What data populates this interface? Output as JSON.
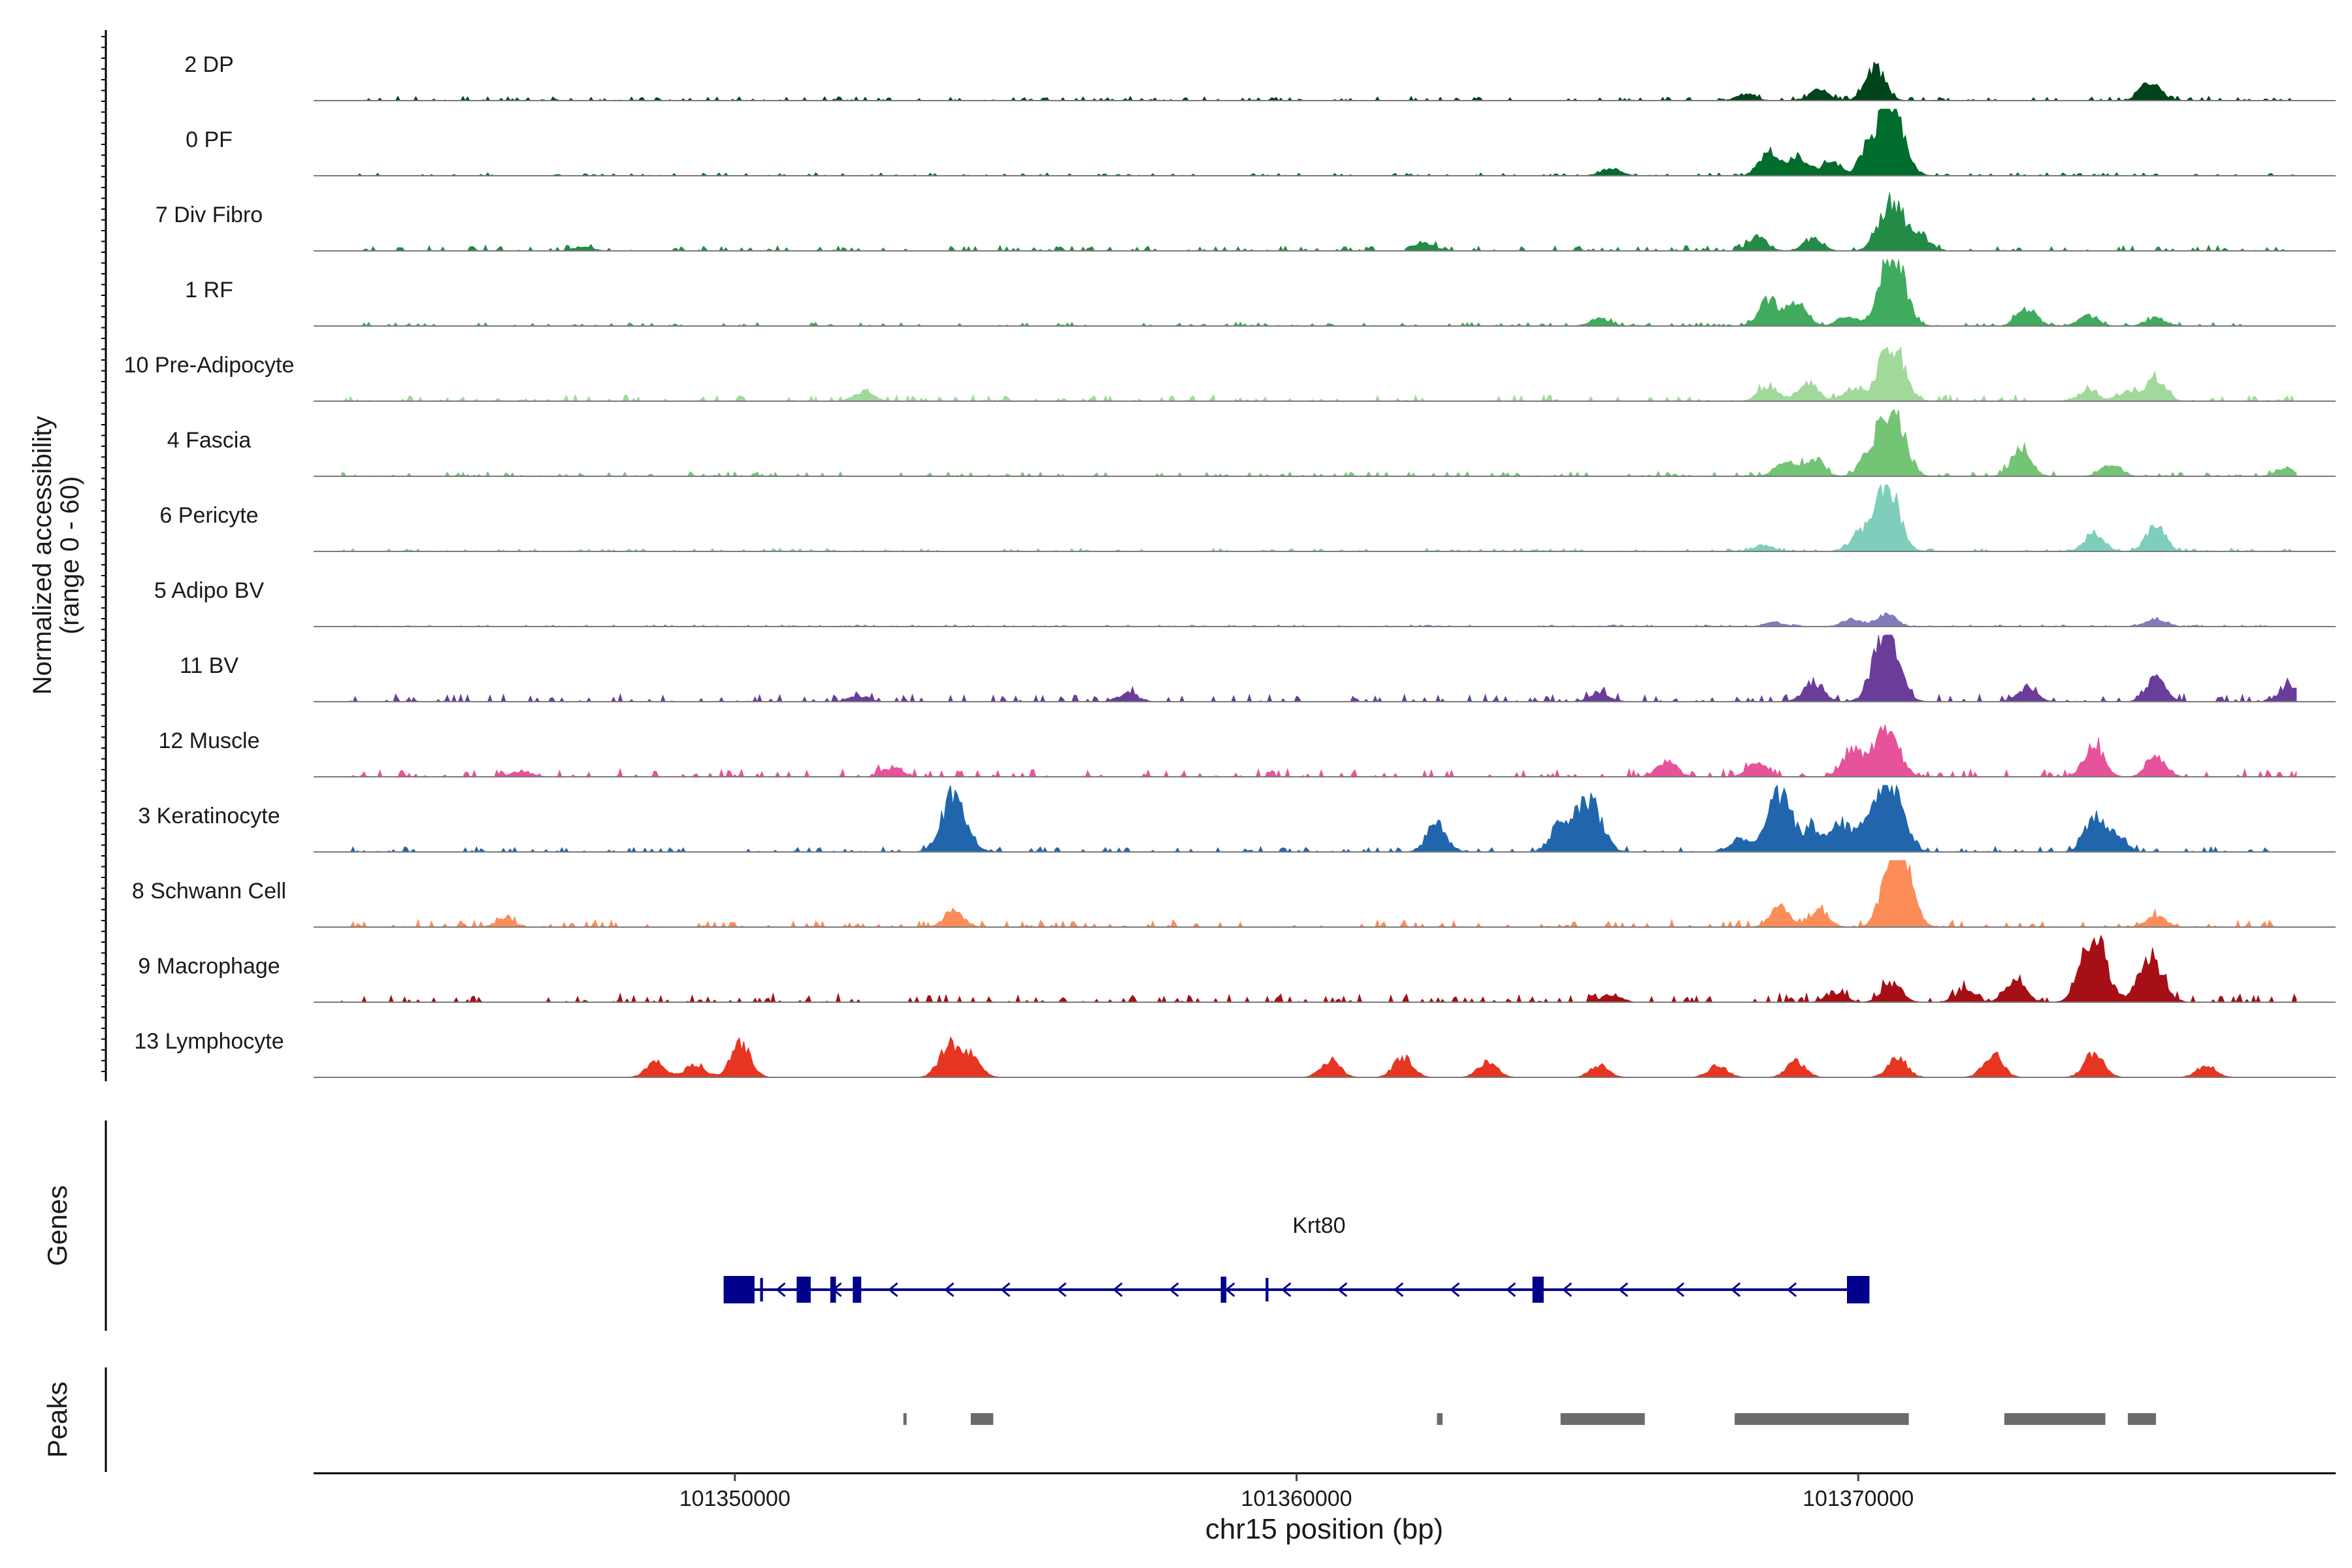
{
  "chart_data": {
    "type": "area",
    "title": "",
    "xlabel": "chr15 position (bp)",
    "ylabel_line1": "Normalized accessibility",
    "ylabel_line2": "(range 0 - 60)",
    "ylim": [
      0,
      60
    ],
    "xlim": [
      101342500,
      101378500
    ],
    "x_ticks": [
      {
        "value": 101350000,
        "label": "101350000"
      },
      {
        "value": 101360000,
        "label": "101360000"
      },
      {
        "value": 101370000,
        "label": "101370000"
      }
    ],
    "peaks_by_track_note": "Each series lists peak centers (bp) and heights (normalized accessibility, 0-60).",
    "series": [
      {
        "name": "2 DP",
        "color": "#00441b",
        "noise": 1.2,
        "peaks": [
          [
            101370300,
            18
          ],
          [
            101375200,
            10
          ],
          [
            101369300,
            5
          ],
          [
            101368000,
            3
          ]
        ]
      },
      {
        "name": "0 PF",
        "color": "#006d2c",
        "noise": 0.8,
        "peaks": [
          [
            101370600,
            35
          ],
          [
            101368400,
            12
          ],
          [
            101368900,
            10
          ],
          [
            101369500,
            8
          ],
          [
            101370200,
            14
          ],
          [
            101365600,
            4
          ]
        ]
      },
      {
        "name": "7 Div Fibro",
        "color": "#238b45",
        "noise": 1.5,
        "peaks": [
          [
            101370600,
            25
          ],
          [
            101368200,
            7
          ],
          [
            101369200,
            6
          ],
          [
            101371100,
            8
          ],
          [
            101362300,
            4
          ],
          [
            101347300,
            2
          ]
        ]
      },
      {
        "name": "1 RF",
        "color": "#41ab5d",
        "noise": 1.0,
        "peaks": [
          [
            101370600,
            40
          ],
          [
            101368400,
            14
          ],
          [
            101368900,
            12
          ],
          [
            101369800,
            5
          ],
          [
            101373000,
            9
          ],
          [
            101374100,
            5
          ],
          [
            101375300,
            4
          ],
          [
            101365400,
            4
          ]
        ]
      },
      {
        "name": "10 Pre-Adipocyte",
        "color": "#a1d99b",
        "noise": 1.8,
        "peaks": [
          [
            101370600,
            30
          ],
          [
            101368400,
            8
          ],
          [
            101369100,
            10
          ],
          [
            101369900,
            7
          ],
          [
            101375300,
            12
          ],
          [
            101374100,
            6
          ],
          [
            101374800,
            5
          ],
          [
            101352300,
            5
          ]
        ]
      },
      {
        "name": "4 Fascia",
        "color": "#74c476",
        "noise": 1.3,
        "peaks": [
          [
            101370600,
            35
          ],
          [
            101368700,
            8
          ],
          [
            101369200,
            9
          ],
          [
            101370200,
            10
          ],
          [
            101372900,
            15
          ],
          [
            101374500,
            6
          ],
          [
            101377600,
            4
          ]
        ]
      },
      {
        "name": "6 Pericyte",
        "color": "#7fcdbb",
        "noise": 0.9,
        "peaks": [
          [
            101370500,
            35
          ],
          [
            101370000,
            8
          ],
          [
            101374200,
            10
          ],
          [
            101375300,
            13
          ],
          [
            101368300,
            3
          ]
        ]
      },
      {
        "name": "5 Adipo BV",
        "color": "#807dba",
        "noise": 0.5,
        "peaks": [
          [
            101370500,
            6
          ],
          [
            101369900,
            4
          ],
          [
            101375300,
            4
          ],
          [
            101368500,
            2
          ]
        ]
      },
      {
        "name": "11 BV",
        "color": "#6a3d9a",
        "noise": 2.2,
        "peaks": [
          [
            101370500,
            40
          ],
          [
            101369200,
            10
          ],
          [
            101375300,
            12
          ],
          [
            101377700,
            9
          ],
          [
            101373000,
            7
          ],
          [
            101352200,
            3
          ],
          [
            101357000,
            4
          ],
          [
            101365400,
            5
          ]
        ]
      },
      {
        "name": "12 Muscle",
        "color": "#e7539a",
        "noise": 2.2,
        "peaks": [
          [
            101370500,
            25
          ],
          [
            101369900,
            15
          ],
          [
            101374200,
            17
          ],
          [
            101375300,
            10
          ],
          [
            101368200,
            7
          ],
          [
            101366600,
            8
          ],
          [
            101352800,
            5
          ],
          [
            101346200,
            3
          ]
        ]
      },
      {
        "name": "3 Keratinocyte",
        "color": "#2166ac",
        "noise": 1.5,
        "peaks": [
          [
            101353900,
            30
          ],
          [
            101362500,
            14
          ],
          [
            101364700,
            15
          ],
          [
            101365200,
            28
          ],
          [
            101368600,
            30
          ],
          [
            101369200,
            12
          ],
          [
            101369700,
            14
          ],
          [
            101370200,
            18
          ],
          [
            101370600,
            36
          ],
          [
            101374200,
            18
          ],
          [
            101374600,
            8
          ],
          [
            101367900,
            6
          ]
        ]
      },
      {
        "name": "8 Schwann Cell",
        "color": "#fc8d59",
        "noise": 2.0,
        "peaks": [
          [
            101370700,
            47
          ],
          [
            101368600,
            10
          ],
          [
            101369300,
            8
          ],
          [
            101353900,
            8
          ],
          [
            101375300,
            6
          ],
          [
            101345900,
            4
          ]
        ]
      },
      {
        "name": "9 Macrophage",
        "color": "#a50f15",
        "noise": 2.5,
        "peaks": [
          [
            101374200,
            36
          ],
          [
            101375200,
            22
          ],
          [
            101372800,
            12
          ],
          [
            101370600,
            10
          ],
          [
            101371900,
            6
          ],
          [
            101369600,
            5
          ],
          [
            101365600,
            4
          ]
        ]
      },
      {
        "name": "13 Lymphocyte",
        "color": "#e63520",
        "noise": 0,
        "peaks": [
          [
            101350100,
            18
          ],
          [
            101353800,
            16
          ],
          [
            101354200,
            12
          ],
          [
            101348600,
            8
          ],
          [
            101349300,
            7
          ],
          [
            101360600,
            9
          ],
          [
            101361900,
            10
          ],
          [
            101363400,
            8
          ],
          [
            101365400,
            6
          ],
          [
            101367500,
            6
          ],
          [
            101368900,
            8
          ],
          [
            101370700,
            10
          ],
          [
            101372400,
            12
          ],
          [
            101374200,
            13
          ],
          [
            101376200,
            6
          ]
        ]
      }
    ],
    "gene_track_label": "Genes",
    "gene": {
      "name": "Krt80",
      "start": 101349800,
      "end": 101370200,
      "strand": "-",
      "exons": [
        [
          101349800,
          101350350
        ],
        [
          101350450,
          101350500
        ],
        [
          101351100,
          101351350
        ],
        [
          101351700,
          101351800
        ],
        [
          101352100,
          101352250
        ],
        [
          101358650,
          101358750
        ],
        [
          101359450,
          101359500
        ],
        [
          101364200,
          101364400
        ],
        [
          101369800,
          101370200
        ]
      ]
    },
    "peaks_track_label": "Peaks",
    "peaks": [
      [
        101353000,
        101353050
      ],
      [
        101354200,
        101354600
      ],
      [
        101362500,
        101362600
      ],
      [
        101364700,
        101366200
      ],
      [
        101367800,
        101370900
      ],
      [
        101372600,
        101374400
      ],
      [
        101374800,
        101375300
      ]
    ]
  }
}
